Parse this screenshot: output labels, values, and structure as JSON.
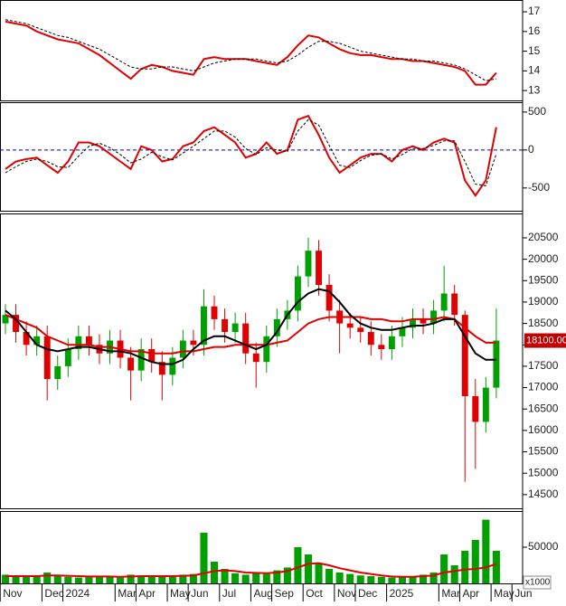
{
  "chart_data": [
    {
      "type": "line",
      "ylim": [
        12.5,
        17.6
      ],
      "yticks": [
        13,
        14,
        15,
        16,
        17
      ],
      "series": [
        {
          "color": "#e00000",
          "style": "solid",
          "values": [
            16.5,
            16.4,
            16.3,
            16.0,
            15.8,
            15.6,
            15.5,
            15.4,
            15.1,
            14.8,
            14.4,
            14.0,
            13.6,
            14.1,
            14.3,
            14.2,
            14.0,
            13.9,
            13.8,
            14.6,
            14.7,
            14.6,
            14.6,
            14.6,
            14.5,
            14.4,
            14.3,
            14.7,
            15.3,
            15.8,
            15.7,
            15.4,
            15.1,
            14.9,
            14.8,
            14.8,
            14.7,
            14.6,
            14.6,
            14.5,
            14.5,
            14.4,
            14.3,
            14.2,
            14.0,
            13.3,
            13.3,
            13.9,
            null,
            null
          ]
        },
        {
          "color": "#000000",
          "style": "dashed",
          "values": [
            16.6,
            16.5,
            16.4,
            16.2,
            16.0,
            15.8,
            15.7,
            15.5,
            15.3,
            15.1,
            14.8,
            14.5,
            14.2,
            14.1,
            14.1,
            14.2,
            14.2,
            14.1,
            14.0,
            14.2,
            14.4,
            14.5,
            14.6,
            14.6,
            14.6,
            14.5,
            14.4,
            14.5,
            14.8,
            15.2,
            15.5,
            15.5,
            15.4,
            15.2,
            15.0,
            14.9,
            14.8,
            14.7,
            14.6,
            14.6,
            14.5,
            14.5,
            14.4,
            14.3,
            14.1,
            13.8,
            13.5,
            13.6,
            null,
            null
          ]
        }
      ]
    },
    {
      "type": "line",
      "ylim": [
        -800,
        630
      ],
      "yticks": [
        500,
        0,
        -500
      ],
      "hline": 0,
      "hline_color": "#0000cc",
      "series": [
        {
          "color": "#e00000",
          "style": "solid",
          "values": [
            -250,
            -150,
            -120,
            -100,
            -200,
            -300,
            -150,
            100,
            100,
            50,
            -50,
            -150,
            -250,
            50,
            0,
            -150,
            -120,
            50,
            100,
            250,
            300,
            200,
            100,
            -100,
            -50,
            100,
            -50,
            0,
            400,
            450,
            200,
            -100,
            -300,
            -200,
            -100,
            -50,
            -50,
            -150,
            0,
            50,
            0,
            100,
            150,
            100,
            -400,
            -600,
            -400,
            300,
            null,
            null
          ]
        },
        {
          "color": "#000000",
          "style": "dashed",
          "values": [
            -300,
            -220,
            -150,
            -120,
            -150,
            -220,
            -230,
            -80,
            50,
            90,
            30,
            -60,
            -170,
            -120,
            -30,
            -90,
            -130,
            -40,
            50,
            150,
            250,
            250,
            170,
            20,
            -60,
            30,
            0,
            -20,
            250,
            400,
            330,
            60,
            -200,
            -230,
            -140,
            -70,
            -50,
            -120,
            -60,
            20,
            20,
            60,
            120,
            120,
            -150,
            -450,
            -470,
            -50,
            null,
            null
          ]
        }
      ]
    },
    {
      "type": "candlestick",
      "ylim": [
        14180,
        21070
      ],
      "yticks": [
        14500,
        15000,
        15500,
        16000,
        16500,
        17000,
        17500,
        18000,
        18500,
        19000,
        19500,
        20000,
        20500
      ],
      "up_color": "#00a000",
      "down_color": "#e00000",
      "open": [
        18500,
        18700,
        18300,
        18000,
        18200,
        17200,
        17500,
        17900,
        18200,
        18000,
        17800,
        18100,
        17700,
        17400,
        17900,
        17600,
        17300,
        17700,
        18100,
        18000,
        18900,
        18600,
        18300,
        18500,
        17800,
        17600,
        18200,
        18600,
        18800,
        19600,
        20200,
        19400,
        18800,
        18500,
        18400,
        18300,
        18000,
        17900,
        18200,
        18400,
        18600,
        18500,
        18800,
        19200,
        18700,
        16800,
        16200,
        17000,
        null,
        null
      ],
      "high": [
        18950,
        18950,
        18550,
        18450,
        18450,
        17750,
        18150,
        18450,
        18450,
        18250,
        18350,
        18350,
        17950,
        18150,
        18150,
        17850,
        17950,
        18350,
        18350,
        19300,
        19150,
        18850,
        18750,
        18750,
        18050,
        18450,
        18850,
        19050,
        19850,
        20500,
        20450,
        19650,
        19050,
        18750,
        18650,
        18550,
        18250,
        18450,
        18650,
        18850,
        18850,
        19050,
        19850,
        19400,
        18800,
        17200,
        17250,
        18850,
        null,
        null
      ],
      "low": [
        18250,
        18050,
        17750,
        17750,
        16700,
        16950,
        17250,
        17650,
        17750,
        17550,
        17550,
        17450,
        16700,
        17150,
        17350,
        16700,
        17050,
        17450,
        17750,
        17750,
        18350,
        18050,
        18050,
        17550,
        17000,
        17350,
        17950,
        18350,
        18550,
        19350,
        19150,
        18550,
        17800,
        18150,
        18050,
        17750,
        17650,
        17650,
        17950,
        18150,
        18250,
        18250,
        18550,
        18450,
        14800,
        15100,
        15950,
        16750,
        null,
        null
      ],
      "close": [
        18700,
        18300,
        18000,
        18200,
        17200,
        17500,
        17900,
        18200,
        18000,
        17800,
        18100,
        17700,
        17400,
        17900,
        17600,
        17300,
        17700,
        18100,
        18000,
        18900,
        18600,
        18300,
        18500,
        17800,
        17600,
        18200,
        18600,
        18800,
        19600,
        20200,
        19400,
        18800,
        18500,
        18400,
        18300,
        18000,
        17900,
        18200,
        18400,
        18600,
        18500,
        18800,
        19200,
        18700,
        16800,
        16200,
        17000,
        18100,
        null,
        null
      ],
      "price_tag": {
        "value": 18100,
        "label": "18100.00"
      },
      "series": [
        {
          "color": "#e00000",
          "style": "solid",
          "values": [
            18700,
            18600,
            18500,
            18400,
            18200,
            18100,
            18000,
            18000,
            18000,
            17950,
            17950,
            17900,
            17850,
            17850,
            17800,
            17800,
            17800,
            17850,
            17850,
            17900,
            17950,
            17950,
            18000,
            18000,
            18000,
            18000,
            18050,
            18100,
            18300,
            18500,
            18600,
            18650,
            18650,
            18650,
            18650,
            18600,
            18600,
            18550,
            18550,
            18600,
            18600,
            18600,
            18650,
            18600,
            18400,
            18200,
            18050,
            18050,
            null,
            null
          ]
        },
        {
          "color": "#000000",
          "style": "solid",
          "values": [
            18800,
            18600,
            18300,
            18000,
            17900,
            17850,
            17900,
            17950,
            17950,
            17900,
            17850,
            17850,
            17800,
            17700,
            17600,
            17550,
            17550,
            17650,
            17900,
            18100,
            18200,
            18200,
            18100,
            18000,
            17900,
            18000,
            18300,
            18700,
            19000,
            19200,
            19300,
            19250,
            19000,
            18700,
            18500,
            18400,
            18350,
            18350,
            18400,
            18450,
            18450,
            18500,
            18600,
            18600,
            18200,
            17800,
            17650,
            17650,
            null,
            null
          ]
        }
      ]
    },
    {
      "type": "bar",
      "ylim": [
        0,
        100000
      ],
      "yticks": [
        50000
      ],
      "color": "#00a000",
      "unit_label": "x1000",
      "categories": [
        "Nov",
        null,
        null,
        null,
        "Dec",
        null,
        "2024",
        null,
        null,
        null,
        null,
        "Mar",
        null,
        "Apr",
        null,
        null,
        "May",
        null,
        "Jun",
        null,
        null,
        "Jul",
        null,
        null,
        "Aug",
        null,
        "Sep",
        null,
        null,
        "Oct",
        null,
        null,
        "Nov",
        null,
        "Dec",
        null,
        null,
        "2025",
        null,
        null,
        null,
        null,
        "Mar",
        null,
        "Apr",
        null,
        null,
        "May",
        null,
        "Jun"
      ],
      "values": [
        12000,
        10000,
        9000,
        11000,
        15000,
        10000,
        9000,
        8000,
        9000,
        10000,
        9000,
        8000,
        12000,
        10000,
        9000,
        11000,
        10000,
        12000,
        13000,
        70000,
        30000,
        20000,
        14000,
        12000,
        15000,
        13000,
        18000,
        22000,
        50000,
        40000,
        28000,
        20000,
        15000,
        13000,
        11000,
        10000,
        9000,
        8000,
        9000,
        10000,
        12000,
        15000,
        40000,
        25000,
        45000,
        60000,
        88000,
        45000,
        null,
        null
      ],
      "series": [
        {
          "color": "#e00000",
          "style": "solid",
          "values": [
            10000,
            10000,
            10000,
            10000,
            11000,
            11000,
            10500,
            10000,
            9500,
            9500,
            9500,
            9000,
            9500,
            10000,
            10000,
            10000,
            10000,
            10500,
            11000,
            14000,
            17000,
            18000,
            17000,
            15000,
            14500,
            14000,
            15000,
            17000,
            22000,
            27000,
            28000,
            25000,
            21000,
            18000,
            15000,
            13000,
            11000,
            9500,
            9000,
            9000,
            10000,
            11000,
            15000,
            17000,
            19000,
            20000,
            22000,
            27000,
            null,
            null
          ]
        }
      ]
    }
  ]
}
